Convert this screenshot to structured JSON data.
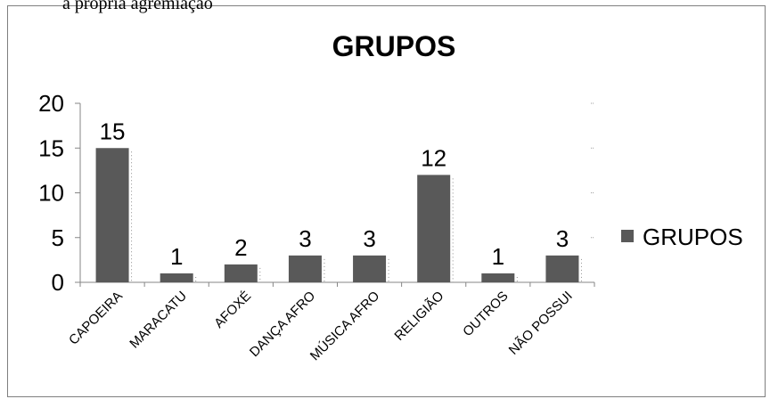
{
  "page": {
    "top_text": "a própria agremiação"
  },
  "chart_data": {
    "type": "bar",
    "title": "GRUPOS",
    "categories": [
      "CAPOEIRA",
      "MARACATU",
      "AFOXÉ",
      "DANÇA AFRO",
      "MÚSICA AFRO",
      "RELIGIÃO",
      "OUTROS",
      "NÃO POSSUI"
    ],
    "series": [
      {
        "name": "GRUPOS",
        "values": [
          15,
          1,
          2,
          3,
          3,
          12,
          1,
          3
        ],
        "color": "#595959"
      }
    ],
    "ylim": [
      0,
      20
    ],
    "yticks": [
      0,
      5,
      10,
      15,
      20
    ],
    "grid": false,
    "data_labels": true,
    "legend_position": "right",
    "xlabel": "",
    "ylabel": ""
  }
}
